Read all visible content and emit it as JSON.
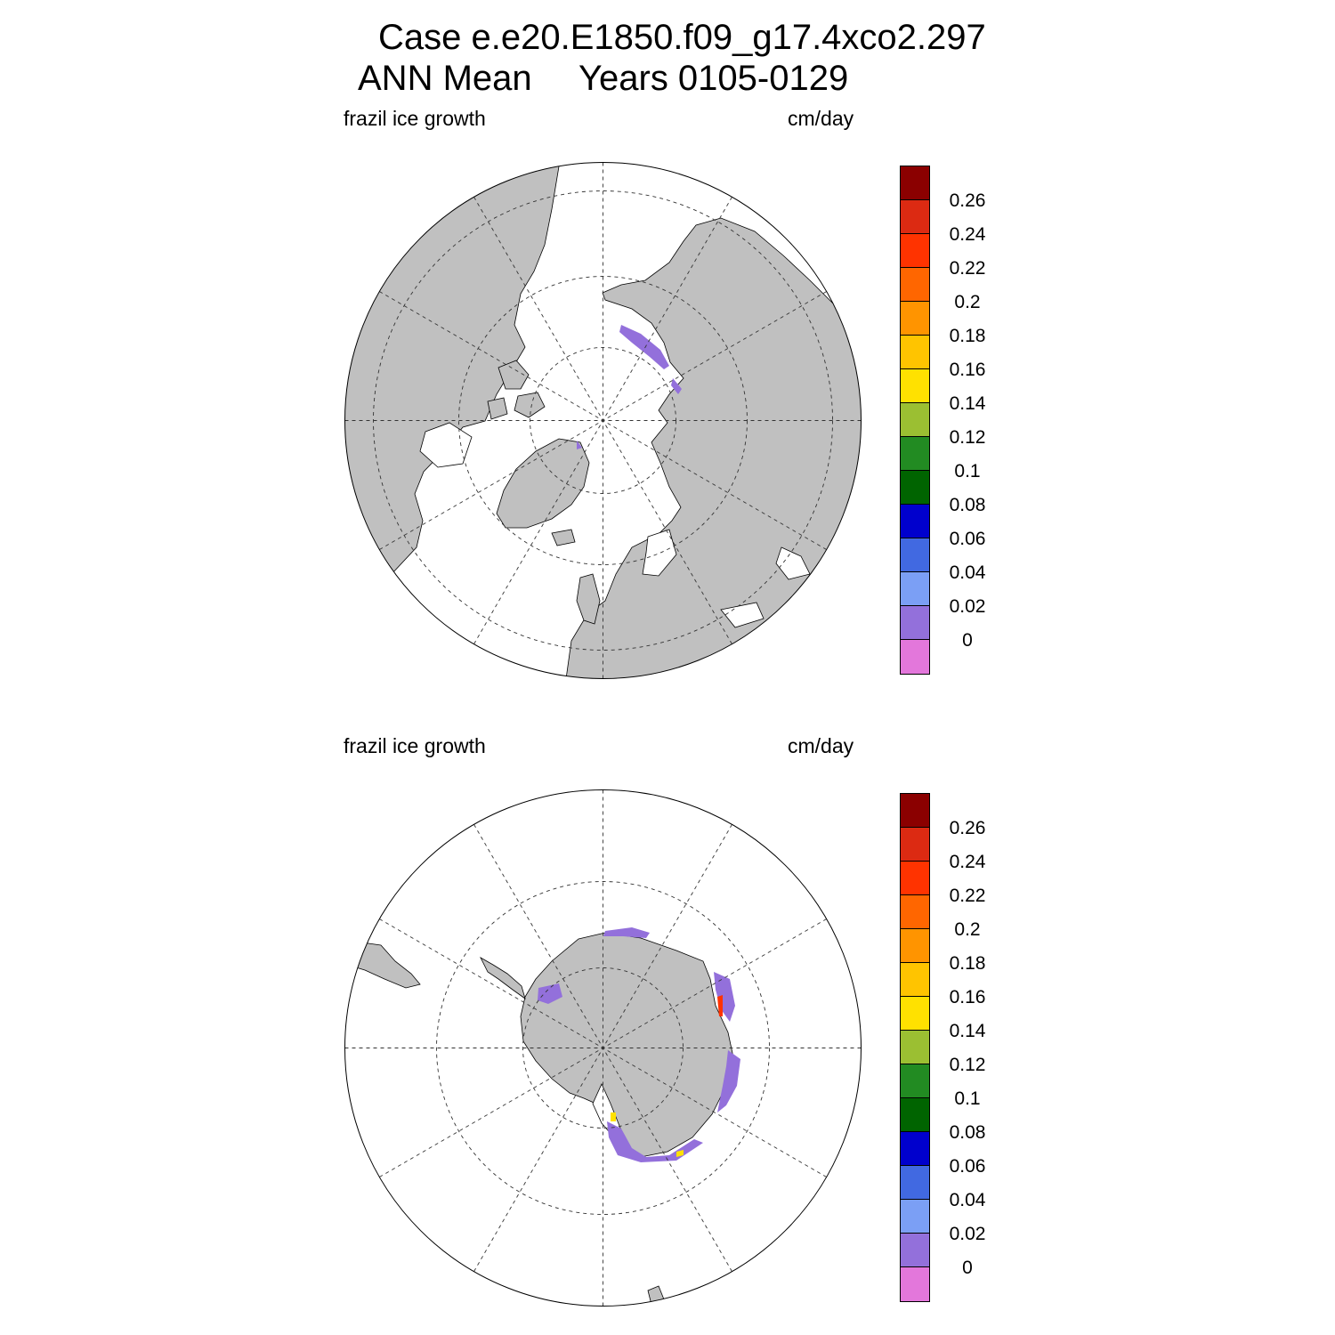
{
  "header": {
    "line1": "Case e.e20.E1850.f09_g17.4xco2.297",
    "line2_left": "ANN Mean",
    "line2_right": "Years 0105-0129"
  },
  "panels": [
    {
      "id": "north",
      "hemisphere": "Northern",
      "left_label": "frazil ice growth",
      "right_label": "cm/day",
      "colorbar": {
        "ticks": [
          "0.26",
          "0.24",
          "0.22",
          "0.2",
          "0.18",
          "0.16",
          "0.14",
          "0.12",
          "0.1",
          "0.08",
          "0.06",
          "0.04",
          "0.02",
          "0"
        ]
      }
    },
    {
      "id": "south",
      "hemisphere": "Southern",
      "left_label": "frazil ice growth",
      "right_label": "cm/day",
      "colorbar": {
        "ticks": [
          "0.26",
          "0.24",
          "0.22",
          "0.2",
          "0.18",
          "0.16",
          "0.14",
          "0.12",
          "0.1",
          "0.08",
          "0.06",
          "0.04",
          "0.02",
          "0"
        ]
      }
    }
  ],
  "colors": {
    "land": "#c0c0c0",
    "ocean": "#ffffff",
    "palette": [
      "#8b0000",
      "#dc2a12",
      "#ff3300",
      "#ff6600",
      "#ff9400",
      "#ffc400",
      "#ffe100",
      "#9bbf32",
      "#228b22",
      "#006400",
      "#0000cd",
      "#4169e1",
      "#7b9ff5",
      "#9370db",
      "#e377db"
    ]
  }
}
